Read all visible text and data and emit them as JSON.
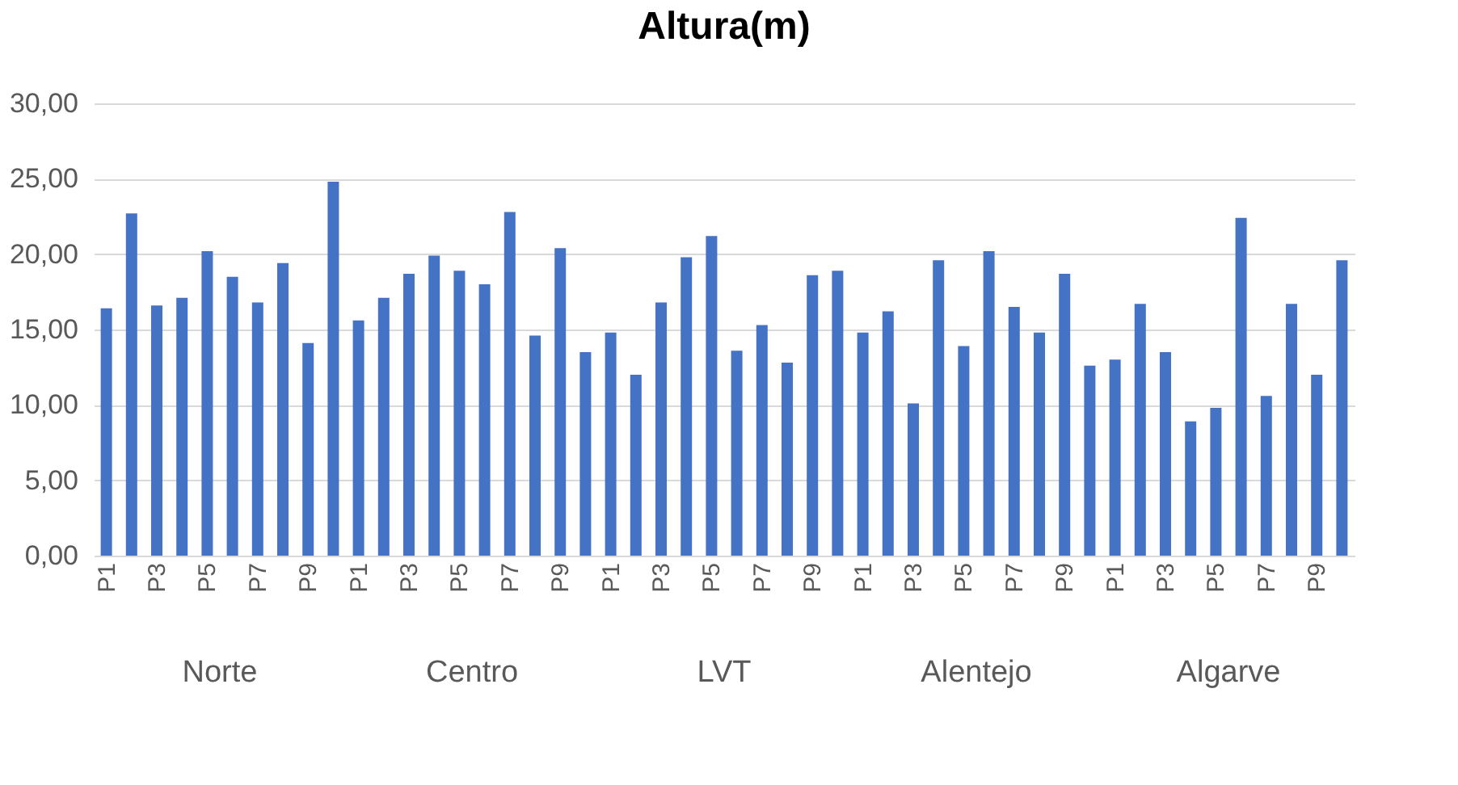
{
  "chart_data": {
    "type": "bar",
    "title": "Altura(m)",
    "categories": [
      "P1",
      null,
      "P3",
      null,
      "P5",
      null,
      "P7",
      null,
      "P9",
      null,
      "P1",
      null,
      "P3",
      null,
      "P5",
      null,
      "P7",
      null,
      "P9",
      null,
      "P1",
      null,
      "P3",
      null,
      "P5",
      null,
      "P7",
      null,
      "P9",
      null,
      "P1",
      null,
      "P3",
      null,
      "P5",
      null,
      "P7",
      null,
      "P9",
      null,
      "P1",
      null,
      "P3",
      null,
      "P5",
      null,
      "P7",
      null,
      "P9",
      null
    ],
    "values": [
      16.4,
      22.7,
      16.6,
      17.1,
      20.2,
      18.5,
      16.8,
      19.4,
      14.1,
      24.8,
      15.6,
      17.1,
      18.7,
      19.9,
      18.9,
      18.0,
      22.8,
      14.6,
      20.4,
      13.5,
      14.8,
      12.0,
      16.8,
      19.8,
      21.2,
      13.6,
      15.3,
      12.8,
      18.6,
      18.9,
      14.8,
      16.2,
      10.1,
      19.6,
      13.9,
      20.2,
      16.5,
      14.8,
      18.7,
      12.6,
      13.0,
      16.7,
      13.5,
      8.9,
      9.8,
      22.4,
      10.6,
      16.7,
      12.0,
      19.6
    ],
    "color": "#4472c4",
    "annotations": [
      "Norte",
      "Centro",
      "LVT",
      "Alentejo",
      "Algarve"
    ],
    "ylim": [
      0,
      30
    ],
    "yticks": [
      {
        "value": 0,
        "label": "0,00"
      },
      {
        "value": 5,
        "label": "5,00"
      },
      {
        "value": 10,
        "label": "10,00"
      },
      {
        "value": 15,
        "label": "15,00"
      },
      {
        "value": 20,
        "label": "20,00"
      },
      {
        "value": 25,
        "label": "25,00"
      },
      {
        "value": 30,
        "label": "30,00"
      }
    ],
    "grid": "y"
  }
}
